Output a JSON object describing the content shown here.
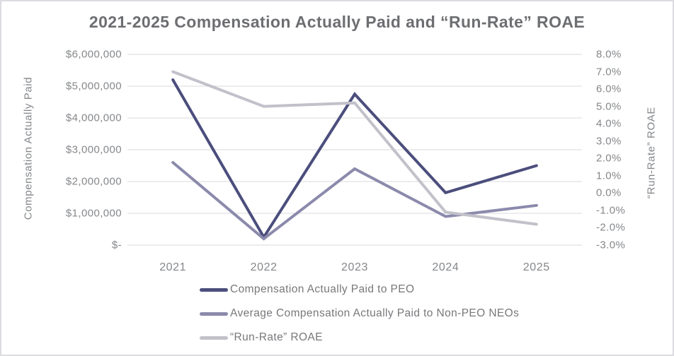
{
  "title": "2021-2025 Compensation Actually Paid and “Run-Rate” ROAE",
  "colors": {
    "title_text": "#6d6e71",
    "axis_text": "#85878a",
    "legend_text": "#77787b",
    "gridline": "#d9d9dc",
    "background": "#ffffff",
    "frame_border": "#dcdce0",
    "series_peo": "#4b4e7c",
    "series_non_peo": "#8b8aac",
    "series_roae": "#c2c1ca"
  },
  "chart_data": {
    "type": "line",
    "title": "2021-2025 Compensation Actually Paid and “Run-Rate” ROAE",
    "categories": [
      "2021",
      "2022",
      "2023",
      "2024",
      "2025"
    ],
    "series": [
      {
        "name": "Compensation Actually Paid to PEO",
        "axis": "left",
        "color": "#4b4e7c",
        "values": [
          5200000,
          250000,
          4750000,
          1650000,
          2500000
        ]
      },
      {
        "name": "Average Compensation Actually Paid to Non-PEO NEOs",
        "axis": "left",
        "color": "#8b8aac",
        "values": [
          2600000,
          200000,
          2400000,
          900000,
          1250000
        ]
      },
      {
        "name": "“Run-Rate” ROAE",
        "axis": "right",
        "color": "#c2c1ca",
        "values": [
          7.0,
          5.0,
          5.2,
          -1.1,
          -1.8
        ]
      }
    ],
    "left_axis": {
      "title": "Compensation Actually Paid",
      "min": 0,
      "max": 6000000,
      "ticks": [
        "$6,000,000",
        "$5,000,000",
        "$4,000,000",
        "$3,000,000",
        "$2,000,000",
        "$1,000,000",
        "$-"
      ]
    },
    "right_axis": {
      "title": "“Run-Rate” ROAE",
      "min": -3.0,
      "max": 8.0,
      "ticks": [
        "8.0%",
        "7.0%",
        "6.0%",
        "5.0%",
        "4.0%",
        "3.0%",
        "2.0%",
        "1.0%",
        "0.0%",
        "-1.0%",
        "-2.0%",
        "-3.0%"
      ]
    },
    "grid": true,
    "legend_position": "bottom-left"
  }
}
